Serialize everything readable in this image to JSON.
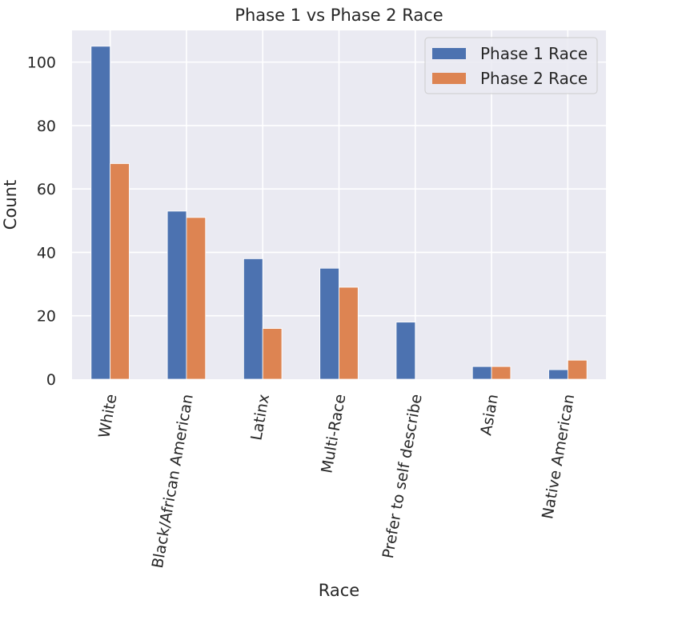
{
  "chart_data": {
    "type": "bar",
    "title": "Phase 1 vs Phase 2 Race",
    "xlabel": "Race",
    "ylabel": "Count",
    "categories": [
      "White",
      "Black/African American",
      "Latinx",
      "Multi-Race",
      "Prefer to self describe",
      "Asian",
      "Native American"
    ],
    "series": [
      {
        "name": "Phase 1 Race",
        "values": [
          105,
          53,
          38,
          35,
          18,
          4,
          3
        ]
      },
      {
        "name": "Phase 2 Race",
        "values": [
          68,
          51,
          16,
          29,
          0,
          4,
          6
        ]
      }
    ],
    "ylim": [
      0,
      110
    ],
    "yticks": [
      0,
      20,
      40,
      60,
      80,
      100
    ],
    "grid": true,
    "legend_position": "top-right",
    "colors": {
      "series": [
        "#4c72b0",
        "#dd8452"
      ],
      "plot_background": "#eaeaf2",
      "grid": "#ffffff"
    }
  }
}
